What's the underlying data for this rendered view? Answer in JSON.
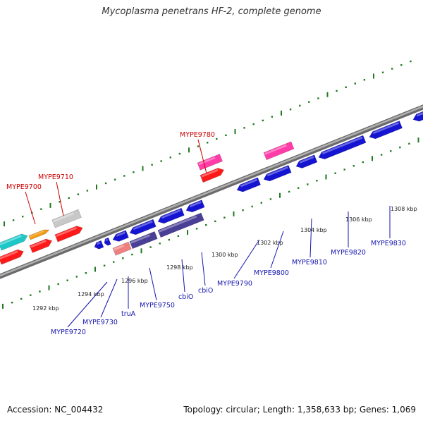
{
  "title": "Mycoplasma penetrans HF-2, complete genome",
  "accession": "Accession: NC_004432",
  "summary": "Topology: circular; Length: 1,358,633 bp; Genes: 1,069",
  "colors": {
    "backbone": "#8c8c8c",
    "tick": "#1f7a1f",
    "label_forward": "#cc0000",
    "label_reverse": "#1515b0",
    "scale_label": "#222222"
  },
  "scale_labels": [
    "1292 kbp",
    "1294 kbp",
    "1296 kbp",
    "1298 kbp",
    "1300 kbp",
    "1302 kbp",
    "1304 kbp",
    "1306 kbp",
    "1308 kbp"
  ],
  "forward_gene_labels": [
    "MYPE9700",
    "MYPE9710",
    "MYPE9780"
  ],
  "reverse_gene_labels": [
    "MYPE9720",
    "MYPE9730",
    "truA",
    "MYPE9750",
    "cbiO",
    "cbiO",
    "MYPE9790",
    "MYPE9800",
    "MYPE9810",
    "MYPE9820",
    "MYPE9830"
  ]
}
